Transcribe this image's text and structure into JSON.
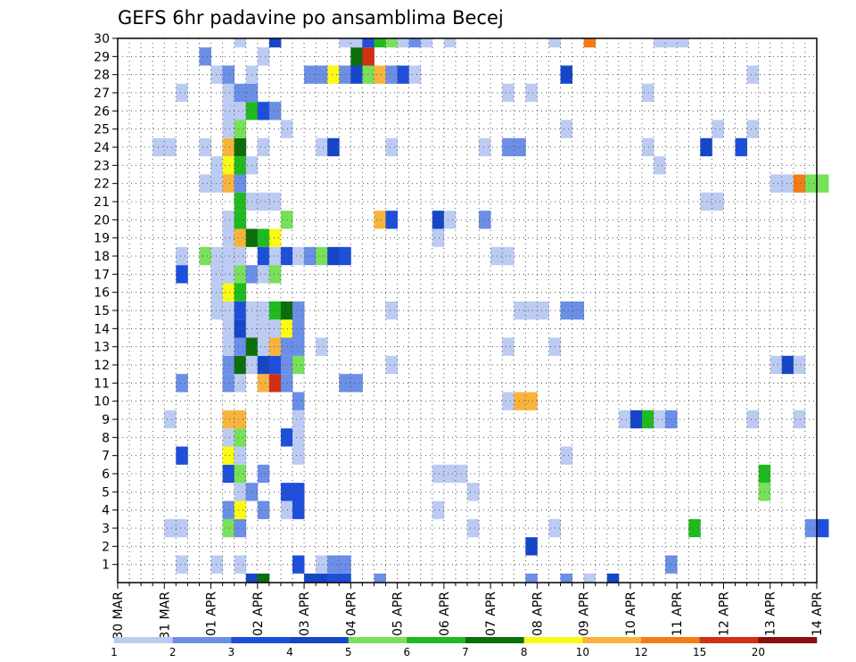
{
  "chart_data": {
    "type": "heatmap",
    "title": "GEFS 6hr padavine po ansamblima Becej",
    "xlabel": "",
    "ylabel": "",
    "x_ticks": [
      "30 MAR",
      "31 MAR",
      "01 APR",
      "02 APR",
      "03 APR",
      "04 APR",
      "05 APR",
      "06 APR",
      "07 APR",
      "08 APR",
      "09 APR",
      "10 APR",
      "11 APR",
      "12 APR",
      "13 APR",
      "14 APR"
    ],
    "y_ticks": [
      "1",
      "2",
      "3",
      "4",
      "5",
      "6",
      "7",
      "8",
      "9",
      "10",
      "11",
      "12",
      "13",
      "14",
      "15",
      "16",
      "17",
      "18",
      "19",
      "20",
      "21",
      "22",
      "23",
      "24",
      "25",
      "26",
      "27",
      "28",
      "29",
      "30"
    ],
    "x_range": [
      "30 MAR",
      "14 APR"
    ],
    "y_range": [
      0,
      30
    ],
    "steps_per_day": 4,
    "grid": true,
    "legend": "colorbar-bottom",
    "colorbar": {
      "levels": [
        1,
        2,
        3,
        4,
        5,
        6,
        7,
        8,
        10,
        12,
        15,
        20
      ],
      "colors": [
        "#bccbf2",
        "#6b8ee6",
        "#1e4fdb",
        "#1646c8",
        "#78e05a",
        "#1fba1f",
        "#0b6e0b",
        "#fafa14",
        "#f7b43c",
        "#f57c14",
        "#d22f14",
        "#8c0f0a"
      ]
    },
    "cell_color_index": {
      "0": [
        [
          11,
          3
        ],
        [
          12,
          6
        ],
        [
          16,
          3
        ],
        [
          17,
          3
        ],
        [
          18,
          2
        ],
        [
          19,
          2
        ],
        [
          22,
          1
        ],
        [
          35,
          1
        ],
        [
          38,
          1
        ],
        [
          40,
          0
        ],
        [
          42,
          3
        ]
      ],
      "1": [
        [
          5,
          0
        ],
        [
          8,
          0
        ],
        [
          10,
          0
        ],
        [
          15,
          2
        ],
        [
          17,
          0
        ],
        [
          18,
          1
        ],
        [
          19,
          1
        ],
        [
          47,
          1
        ]
      ],
      "2": [
        [
          35,
          3
        ]
      ],
      "3": [
        [
          4,
          0
        ],
        [
          5,
          0
        ],
        [
          9,
          4
        ],
        [
          10,
          1
        ],
        [
          30,
          0
        ],
        [
          37,
          0
        ],
        [
          49,
          5
        ],
        [
          59,
          1
        ],
        [
          60,
          2
        ]
      ],
      "4": [
        [
          9,
          1
        ],
        [
          10,
          7
        ],
        [
          12,
          1
        ],
        [
          14,
          0
        ],
        [
          15,
          2
        ],
        [
          27,
          0
        ]
      ],
      "5": [
        [
          10,
          0
        ],
        [
          11,
          1
        ],
        [
          14,
          2
        ],
        [
          15,
          2
        ],
        [
          30,
          0
        ],
        [
          55,
          4
        ]
      ],
      "6": [
        [
          9,
          2
        ],
        [
          10,
          4
        ],
        [
          12,
          1
        ],
        [
          27,
          0
        ],
        [
          28,
          0
        ],
        [
          29,
          0
        ],
        [
          55,
          5
        ]
      ],
      "7": [
        [
          5,
          2
        ],
        [
          9,
          7
        ],
        [
          10,
          0
        ],
        [
          15,
          0
        ],
        [
          38,
          0
        ]
      ],
      "8": [
        [
          9,
          0
        ],
        [
          10,
          4
        ],
        [
          14,
          2
        ],
        [
          15,
          0
        ]
      ],
      "9": [
        [
          4,
          0
        ],
        [
          9,
          8
        ],
        [
          10,
          8
        ],
        [
          15,
          0
        ],
        [
          43,
          0
        ],
        [
          44,
          3
        ],
        [
          45,
          5
        ],
        [
          46,
          0
        ],
        [
          47,
          1
        ],
        [
          54,
          0
        ],
        [
          58,
          0
        ]
      ],
      "10": [
        [
          15,
          1
        ],
        [
          33,
          0
        ],
        [
          34,
          8
        ],
        [
          35,
          8
        ]
      ],
      "11": [
        [
          5,
          1
        ],
        [
          9,
          1
        ],
        [
          10,
          0
        ],
        [
          12,
          8
        ],
        [
          13,
          10
        ],
        [
          14,
          1
        ],
        [
          19,
          1
        ],
        [
          20,
          1
        ]
      ],
      "12": [
        [
          9,
          1
        ],
        [
          10,
          6
        ],
        [
          11,
          0
        ],
        [
          12,
          3
        ],
        [
          13,
          2
        ],
        [
          14,
          1
        ],
        [
          15,
          4
        ],
        [
          23,
          0
        ],
        [
          56,
          0
        ],
        [
          57,
          3
        ],
        [
          58,
          0
        ]
      ],
      "13": [
        [
          9,
          0
        ],
        [
          10,
          1
        ],
        [
          11,
          6
        ],
        [
          12,
          0
        ],
        [
          13,
          8
        ],
        [
          14,
          1
        ],
        [
          15,
          1
        ],
        [
          17,
          0
        ],
        [
          33,
          0
        ],
        [
          37,
          0
        ]
      ],
      "14": [
        [
          9,
          0
        ],
        [
          10,
          3
        ],
        [
          11,
          0
        ],
        [
          12,
          0
        ],
        [
          13,
          0
        ],
        [
          14,
          7
        ],
        [
          15,
          1
        ]
      ],
      "15": [
        [
          8,
          0
        ],
        [
          9,
          0
        ],
        [
          10,
          2
        ],
        [
          11,
          0
        ],
        [
          12,
          0
        ],
        [
          13,
          5
        ],
        [
          14,
          6
        ],
        [
          15,
          1
        ],
        [
          23,
          0
        ],
        [
          34,
          0
        ],
        [
          35,
          0
        ],
        [
          36,
          0
        ],
        [
          38,
          1
        ],
        [
          39,
          1
        ]
      ],
      "16": [
        [
          8,
          0
        ],
        [
          9,
          7
        ],
        [
          10,
          5
        ]
      ],
      "17": [
        [
          5,
          2
        ],
        [
          8,
          0
        ],
        [
          9,
          0
        ],
        [
          10,
          4
        ],
        [
          11,
          1
        ],
        [
          12,
          0
        ],
        [
          13,
          4
        ]
      ],
      "18": [
        [
          5,
          0
        ],
        [
          7,
          4
        ],
        [
          8,
          0
        ],
        [
          9,
          0
        ],
        [
          10,
          0
        ],
        [
          12,
          2
        ],
        [
          13,
          0
        ],
        [
          14,
          2
        ],
        [
          15,
          0
        ],
        [
          16,
          1
        ],
        [
          17,
          4
        ],
        [
          18,
          3
        ],
        [
          19,
          2
        ],
        [
          32,
          0
        ],
        [
          33,
          0
        ]
      ],
      "19": [
        [
          9,
          0
        ],
        [
          10,
          8
        ],
        [
          11,
          6
        ],
        [
          12,
          5
        ],
        [
          13,
          7
        ],
        [
          27,
          0
        ]
      ],
      "20": [
        [
          9,
          0
        ],
        [
          10,
          5
        ],
        [
          14,
          4
        ],
        [
          22,
          8
        ],
        [
          23,
          2
        ],
        [
          27,
          3
        ],
        [
          28,
          0
        ],
        [
          31,
          1
        ]
      ],
      "21": [
        [
          10,
          5
        ],
        [
          11,
          0
        ],
        [
          12,
          0
        ],
        [
          13,
          0
        ],
        [
          50,
          0
        ],
        [
          51,
          0
        ]
      ],
      "22": [
        [
          7,
          0
        ],
        [
          8,
          0
        ],
        [
          9,
          8
        ],
        [
          10,
          1
        ],
        [
          56,
          0
        ],
        [
          57,
          0
        ],
        [
          58,
          9
        ],
        [
          59,
          4
        ],
        [
          60,
          4
        ]
      ],
      "23": [
        [
          8,
          0
        ],
        [
          9,
          7
        ],
        [
          10,
          5
        ],
        [
          11,
          0
        ],
        [
          46,
          0
        ]
      ],
      "24": [
        [
          3,
          0
        ],
        [
          4,
          0
        ],
        [
          7,
          0
        ],
        [
          9,
          8
        ],
        [
          10,
          6
        ],
        [
          12,
          0
        ],
        [
          17,
          0
        ],
        [
          18,
          3
        ],
        [
          23,
          0
        ],
        [
          31,
          0
        ],
        [
          33,
          1
        ],
        [
          34,
          1
        ],
        [
          45,
          0
        ],
        [
          50,
          3
        ],
        [
          53,
          2
        ]
      ],
      "25": [
        [
          9,
          0
        ],
        [
          10,
          4
        ],
        [
          14,
          0
        ],
        [
          38,
          0
        ],
        [
          51,
          0
        ],
        [
          54,
          0
        ]
      ],
      "26": [
        [
          9,
          0
        ],
        [
          10,
          0
        ],
        [
          11,
          5
        ],
        [
          12,
          2
        ],
        [
          13,
          1
        ]
      ],
      "27": [
        [
          5,
          0
        ],
        [
          9,
          0
        ],
        [
          10,
          1
        ],
        [
          11,
          1
        ],
        [
          33,
          0
        ],
        [
          35,
          0
        ],
        [
          45,
          0
        ]
      ],
      "28": [
        [
          8,
          0
        ],
        [
          9,
          1
        ],
        [
          11,
          0
        ],
        [
          16,
          1
        ],
        [
          17,
          1
        ],
        [
          18,
          7
        ],
        [
          19,
          1
        ],
        [
          20,
          3
        ],
        [
          21,
          4
        ],
        [
          22,
          8
        ],
        [
          23,
          1
        ],
        [
          24,
          2
        ],
        [
          25,
          0
        ],
        [
          38,
          3
        ],
        [
          54,
          0
        ]
      ],
      "29": [
        [
          7,
          1
        ],
        [
          12,
          0
        ],
        [
          20,
          6
        ],
        [
          21,
          10
        ]
      ],
      "30": [
        [
          10,
          0
        ],
        [
          13,
          3
        ],
        [
          19,
          0
        ],
        [
          20,
          0
        ],
        [
          21,
          2
        ],
        [
          22,
          5
        ],
        [
          23,
          4
        ],
        [
          24,
          0
        ],
        [
          25,
          1
        ],
        [
          26,
          0
        ],
        [
          28,
          0
        ],
        [
          37,
          0
        ],
        [
          40,
          9
        ],
        [
          46,
          0
        ],
        [
          47,
          0
        ],
        [
          48,
          0
        ]
      ]
    }
  }
}
